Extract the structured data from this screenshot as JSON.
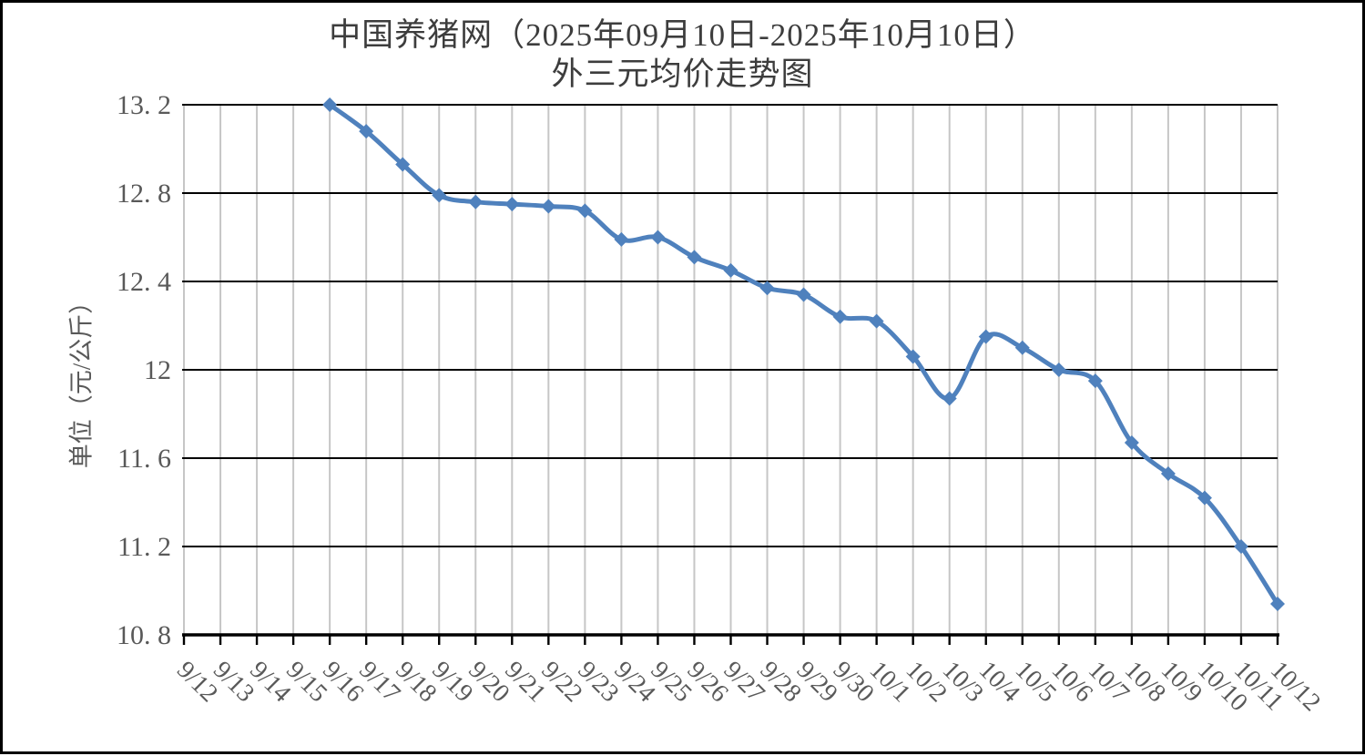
{
  "page": {
    "background": "#ffffff",
    "border_color": "#000000"
  },
  "title": {
    "line1": "中国养猪网（2025年09月10日-2025年10月10日）",
    "line2": "外三元均价走势图"
  },
  "y_axis": {
    "title": "单位（元/公斤）",
    "tick_labels": [
      "13. 2",
      "12. 8",
      "12. 4",
      "12",
      "11. 6",
      "11. 2",
      "10. 8"
    ],
    "tick_values": [
      13.2,
      12.8,
      12.4,
      12,
      11.6,
      11.2,
      10.8
    ]
  },
  "x_axis": {
    "tick_labels": [
      "9/12",
      "9/13",
      "9/14",
      "9/15",
      "9/16",
      "9/17",
      "9/18",
      "9/19",
      "9/20",
      "9/21",
      "9/22",
      "9/23",
      "9/24",
      "9/25",
      "9/26",
      "9/27",
      "9/28",
      "9/29",
      "9/30",
      "10/1",
      "10/2",
      "10/3",
      "10/4",
      "10/5",
      "10/6",
      "10/7",
      "10/8",
      "10/9",
      "10/10",
      "10/11",
      "10/12"
    ]
  },
  "chart_data": {
    "type": "line",
    "title": "中国养猪网（2025年09月10日-2025年10月10日）外三元均价走势图",
    "xlabel": "",
    "ylabel": "单位（元/公斤）",
    "ylim": [
      10.8,
      13.2
    ],
    "ytick_step": 0.4,
    "legend_position": "none",
    "grid": {
      "horizontal": true,
      "vertical": true
    },
    "smooth_line": true,
    "marker": "diamond",
    "categories": [
      "9/12",
      "9/13",
      "9/14",
      "9/15",
      "9/16",
      "9/17",
      "9/18",
      "9/19",
      "9/20",
      "9/21",
      "9/22",
      "9/23",
      "9/24",
      "9/25",
      "9/26",
      "9/27",
      "9/28",
      "9/29",
      "9/30",
      "10/1",
      "10/2",
      "10/3",
      "10/4",
      "10/5",
      "10/6",
      "10/7",
      "10/8",
      "10/9",
      "10/10",
      "10/11",
      "10/12"
    ],
    "series": [
      {
        "values": [
          null,
          null,
          null,
          null,
          13.2,
          13.08,
          12.93,
          12.79,
          12.76,
          12.75,
          12.74,
          12.72,
          12.59,
          12.6,
          12.51,
          12.45,
          12.37,
          12.34,
          12.24,
          12.22,
          12.06,
          11.87,
          12.15,
          12.1,
          12.0,
          11.95,
          11.67,
          11.53,
          11.42,
          11.2,
          10.94
        ]
      }
    ],
    "colors": {
      "line": "#4f81bd",
      "marker": "#4f81bd",
      "h_gridline": "#000000",
      "v_gridline": "#c6c6c6",
      "axis_line": "#000000",
      "axis_text": "#595959",
      "title_text": "#3d3d3d"
    }
  }
}
